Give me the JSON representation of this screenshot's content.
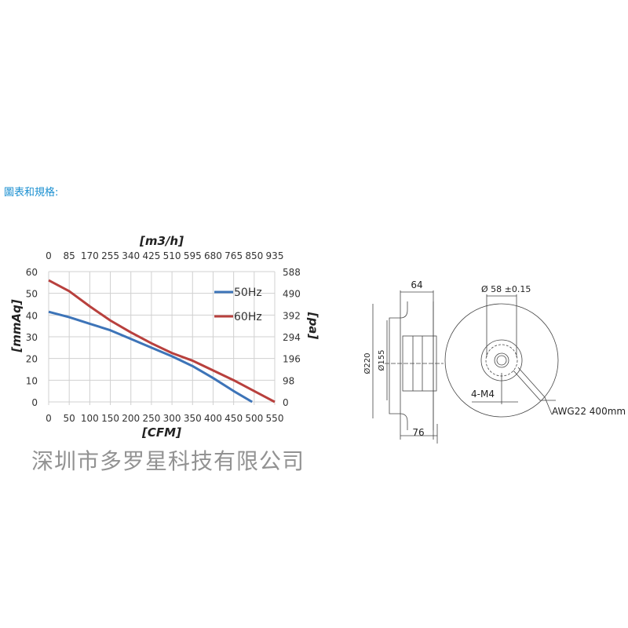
{
  "heading": "圖表和規格:",
  "watermark": "深圳市多罗星科技有限公司",
  "chart_data": {
    "type": "line",
    "xlabel": "[CFM]",
    "x2label": "[m3/h]",
    "ylabel": "[mmAq]",
    "y2label": "[pa]",
    "xlim": [
      0,
      550
    ],
    "ylim": [
      0,
      60
    ],
    "xticks": [
      "0",
      "50",
      "100",
      "150",
      "200",
      "250",
      "300",
      "350",
      "400",
      "450",
      "500",
      "550"
    ],
    "x2ticks": [
      "0",
      "85",
      "170",
      "255",
      "340",
      "425",
      "510",
      "595",
      "680",
      "765",
      "850",
      "935"
    ],
    "yticks": [
      "0",
      "10",
      "20",
      "30",
      "40",
      "50",
      "60"
    ],
    "y2ticks": [
      "0",
      "98",
      "196",
      "294",
      "392",
      "490",
      "588"
    ],
    "grid": true,
    "legend": "top-right",
    "series": [
      {
        "name": "50Hz",
        "color": "#3d74b8",
        "x": [
          0,
          50,
          100,
          150,
          200,
          250,
          300,
          350,
          400,
          450,
          495
        ],
        "y": [
          41.5,
          39,
          36,
          33,
          29,
          25,
          21,
          16.5,
          11,
          5,
          0
        ]
      },
      {
        "name": "60Hz",
        "color": "#b8403d",
        "x": [
          0,
          50,
          100,
          150,
          200,
          250,
          300,
          350,
          400,
          450,
          500,
          550
        ],
        "y": [
          56,
          51,
          44,
          37.5,
          32,
          27,
          22.5,
          19,
          14.5,
          10,
          5,
          0
        ]
      }
    ]
  },
  "drawing": {
    "dim_width_top": "64",
    "dim_width_bottom": "76",
    "dim_outer_dia": "Ø220",
    "dim_inner_dia": "Ø155",
    "dim_bolt_circle": "Ø 58 ±0.15",
    "dim_screws": "4-M4",
    "dim_cable": "AWG22 400mm"
  }
}
